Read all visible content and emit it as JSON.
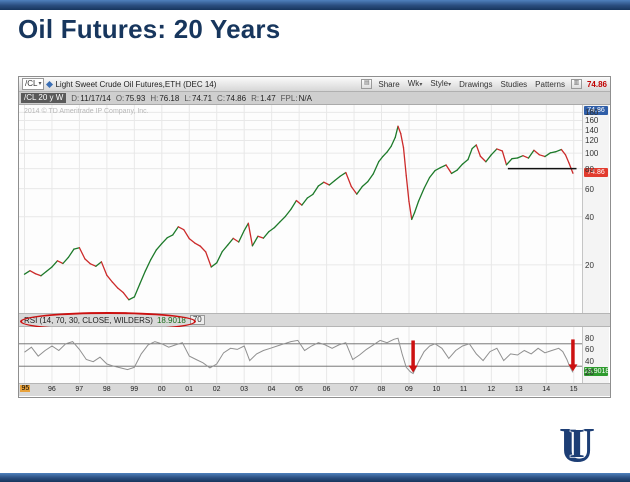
{
  "slide": {
    "title": "Oil Futures: 20 Years"
  },
  "colors": {
    "navy": "#17365d",
    "up": "#1d7a2a",
    "down": "#cc2b2b",
    "annotation_red": "#cc1111",
    "grid": "#e8e8e8",
    "rsi_line": "#909090"
  },
  "platform": {
    "symbol": "/CL",
    "instrument_title": "Light Sweet Crude Oil Futures,ETH (DEC 14)",
    "toolbar_buttons": [
      "Share",
      "Wk",
      "Style",
      "Drawings",
      "Studies",
      "Patterns"
    ],
    "toolbar_last_price": "74.86",
    "range_chip": "/CL 20 y W",
    "status_fields": [
      {
        "label": "D:",
        "value": "11/17/14"
      },
      {
        "label": "O:",
        "value": "75.93"
      },
      {
        "label": "H:",
        "value": "76.18"
      },
      {
        "label": "L:",
        "value": "74.71"
      },
      {
        "label": "C:",
        "value": "74.86"
      },
      {
        "label": "R:",
        "value": "1.47"
      },
      {
        "label": "FPL:",
        "value": "N/A"
      }
    ],
    "watermark": "2014 © TD Ameritrade IP Company, Inc.",
    "top_axis_badge": "74.86",
    "price_axis_badge": "74.86",
    "rsi": {
      "label": "RSI (14, 70, 30, CLOSE, WILDERS)",
      "value": "18.9018",
      "param_badge": "70",
      "current_badge": "18.9018"
    }
  },
  "chart_data": [
    {
      "type": "line",
      "title": "/CL Light Sweet Crude Oil Futures - 20 year weekly (candles up=green, down=red), log price scale",
      "yscale": "log",
      "xlim": [
        1994.8,
        2015.3
      ],
      "ylim": [
        10,
        200
      ],
      "yticks": [
        20,
        40,
        60,
        80,
        100,
        120,
        140,
        160,
        180
      ],
      "xtick_years": [
        1995,
        1996,
        1997,
        1998,
        1999,
        2000,
        2001,
        2002,
        2003,
        2004,
        2005,
        2006,
        2007,
        2008,
        2009,
        2010,
        2011,
        2012,
        2013,
        2014,
        2015
      ],
      "xtick_labels": [
        "95",
        "96",
        "97",
        "98",
        "99",
        "00",
        "01",
        "02",
        "03",
        "04",
        "05",
        "06",
        "07",
        "08",
        "09",
        "10",
        "11",
        "12",
        "13",
        "14",
        "15"
      ],
      "last": 74.86,
      "support_line": {
        "y": 80,
        "x1": 2012.6,
        "x2": 2015.1
      },
      "points": [
        [
          1995.0,
          17.5
        ],
        [
          1995.2,
          18.4
        ],
        [
          1995.4,
          17.6
        ],
        [
          1995.6,
          17.1
        ],
        [
          1995.8,
          18.2
        ],
        [
          1996.0,
          19.4
        ],
        [
          1996.2,
          21.2
        ],
        [
          1996.4,
          20.4
        ],
        [
          1996.6,
          22.3
        ],
        [
          1996.8,
          25.1
        ],
        [
          1997.0,
          25.6
        ],
        [
          1997.2,
          21.8
        ],
        [
          1997.4,
          20.3
        ],
        [
          1997.6,
          19.6
        ],
        [
          1997.8,
          20.9
        ],
        [
          1998.0,
          17.2
        ],
        [
          1998.2,
          15.6
        ],
        [
          1998.4,
          14.3
        ],
        [
          1998.6,
          13.4
        ],
        [
          1998.8,
          12.1
        ],
        [
          1999.0,
          12.6
        ],
        [
          1999.2,
          15.2
        ],
        [
          1999.4,
          18.3
        ],
        [
          1999.6,
          21.6
        ],
        [
          1999.8,
          24.8
        ],
        [
          2000.0,
          27.2
        ],
        [
          2000.2,
          29.6
        ],
        [
          2000.4,
          30.8
        ],
        [
          2000.6,
          34.6
        ],
        [
          2000.8,
          33.2
        ],
        [
          2001.0,
          29.2
        ],
        [
          2001.2,
          27.4
        ],
        [
          2001.4,
          26.2
        ],
        [
          2001.6,
          24.1
        ],
        [
          2001.8,
          19.4
        ],
        [
          2002.0,
          20.6
        ],
        [
          2002.2,
          24.2
        ],
        [
          2002.4,
          26.6
        ],
        [
          2002.6,
          29.3
        ],
        [
          2002.8,
          27.8
        ],
        [
          2003.0,
          32.8
        ],
        [
          2003.15,
          36.4
        ],
        [
          2003.3,
          26.3
        ],
        [
          2003.5,
          30.2
        ],
        [
          2003.7,
          29.4
        ],
        [
          2003.9,
          32.3
        ],
        [
          2004.1,
          34.2
        ],
        [
          2004.3,
          37.1
        ],
        [
          2004.5,
          40.2
        ],
        [
          2004.7,
          44.5
        ],
        [
          2004.9,
          50.5
        ],
        [
          2005.1,
          47.3
        ],
        [
          2005.3,
          52.4
        ],
        [
          2005.5,
          55.2
        ],
        [
          2005.7,
          62.3
        ],
        [
          2005.9,
          65.8
        ],
        [
          2006.1,
          63.2
        ],
        [
          2006.3,
          67.4
        ],
        [
          2006.5,
          71.8
        ],
        [
          2006.7,
          75.6
        ],
        [
          2006.9,
          61.8
        ],
        [
          2007.1,
          55.4
        ],
        [
          2007.3,
          61.8
        ],
        [
          2007.5,
          66.3
        ],
        [
          2007.7,
          74.2
        ],
        [
          2007.9,
          88.5
        ],
        [
          2008.05,
          95.4
        ],
        [
          2008.2,
          101.5
        ],
        [
          2008.35,
          110.2
        ],
        [
          2008.5,
          125.4
        ],
        [
          2008.6,
          147.2
        ],
        [
          2008.7,
          132.5
        ],
        [
          2008.8,
          108.3
        ],
        [
          2008.9,
          72.4
        ],
        [
          2009.0,
          49.8
        ],
        [
          2009.1,
          38.5
        ],
        [
          2009.2,
          42.3
        ],
        [
          2009.35,
          50.1
        ],
        [
          2009.55,
          60.2
        ],
        [
          2009.75,
          70.4
        ],
        [
          2009.95,
          77.8
        ],
        [
          2010.15,
          81.2
        ],
        [
          2010.35,
          84.3
        ],
        [
          2010.55,
          74.6
        ],
        [
          2010.75,
          78.2
        ],
        [
          2010.95,
          85.4
        ],
        [
          2011.15,
          91.2
        ],
        [
          2011.3,
          106.8
        ],
        [
          2011.45,
          112.5
        ],
        [
          2011.6,
          95.6
        ],
        [
          2011.8,
          88.3
        ],
        [
          2012.0,
          97.8
        ],
        [
          2012.2,
          106.2
        ],
        [
          2012.4,
          103.1
        ],
        [
          2012.55,
          84.5
        ],
        [
          2012.75,
          92.3
        ],
        [
          2012.95,
          93.2
        ],
        [
          2013.15,
          96.4
        ],
        [
          2013.35,
          93.1
        ],
        [
          2013.55,
          104.2
        ],
        [
          2013.75,
          97.6
        ],
        [
          2013.95,
          95.2
        ],
        [
          2014.15,
          100.4
        ],
        [
          2014.35,
          102.1
        ],
        [
          2014.55,
          105.3
        ],
        [
          2014.7,
          97.5
        ],
        [
          2014.82,
          87.2
        ],
        [
          2014.9,
          80.4
        ],
        [
          2014.97,
          74.86
        ]
      ]
    },
    {
      "type": "line",
      "title": "RSI (14, 70, 30, CLOSE, WILDERS)",
      "ylim": [
        0,
        100
      ],
      "yticks": [
        20,
        40,
        60,
        80
      ],
      "ref_lines": [
        30,
        70
      ],
      "last": 18.9018,
      "arrows_x": [
        2009.15,
        2014.97
      ],
      "points": [
        [
          1995.0,
          55
        ],
        [
          1995.25,
          64
        ],
        [
          1995.5,
          48
        ],
        [
          1995.75,
          58
        ],
        [
          1996.0,
          66
        ],
        [
          1996.25,
          58
        ],
        [
          1996.5,
          70
        ],
        [
          1996.75,
          74
        ],
        [
          1997.0,
          60
        ],
        [
          1997.25,
          42
        ],
        [
          1997.5,
          38
        ],
        [
          1997.75,
          46
        ],
        [
          1998.0,
          34
        ],
        [
          1998.25,
          30
        ],
        [
          1998.5,
          27
        ],
        [
          1998.75,
          24
        ],
        [
          1999.0,
          28
        ],
        [
          1999.25,
          52
        ],
        [
          1999.5,
          68
        ],
        [
          1999.75,
          74
        ],
        [
          2000.0,
          70
        ],
        [
          2000.25,
          64
        ],
        [
          2000.5,
          68
        ],
        [
          2000.75,
          72
        ],
        [
          2001.0,
          48
        ],
        [
          2001.25,
          42
        ],
        [
          2001.5,
          36
        ],
        [
          2001.75,
          27
        ],
        [
          2002.0,
          34
        ],
        [
          2002.25,
          54
        ],
        [
          2002.5,
          62
        ],
        [
          2002.75,
          60
        ],
        [
          2003.0,
          66
        ],
        [
          2003.2,
          40
        ],
        [
          2003.45,
          52
        ],
        [
          2003.7,
          58
        ],
        [
          2003.95,
          62
        ],
        [
          2004.2,
          66
        ],
        [
          2004.45,
          70
        ],
        [
          2004.7,
          74
        ],
        [
          2004.95,
          76
        ],
        [
          2005.2,
          58
        ],
        [
          2005.45,
          66
        ],
        [
          2005.7,
          72
        ],
        [
          2005.95,
          68
        ],
        [
          2006.2,
          62
        ],
        [
          2006.45,
          68
        ],
        [
          2006.7,
          72
        ],
        [
          2006.95,
          42
        ],
        [
          2007.2,
          50
        ],
        [
          2007.45,
          60
        ],
        [
          2007.7,
          68
        ],
        [
          2007.95,
          76
        ],
        [
          2008.2,
          72
        ],
        [
          2008.45,
          78
        ],
        [
          2008.6,
          80
        ],
        [
          2008.75,
          52
        ],
        [
          2008.9,
          28
        ],
        [
          2009.05,
          20
        ],
        [
          2009.15,
          17
        ],
        [
          2009.35,
          38
        ],
        [
          2009.55,
          56
        ],
        [
          2009.75,
          66
        ],
        [
          2009.95,
          70
        ],
        [
          2010.2,
          62
        ],
        [
          2010.45,
          44
        ],
        [
          2010.7,
          58
        ],
        [
          2010.95,
          66
        ],
        [
          2011.2,
          70
        ],
        [
          2011.45,
          52
        ],
        [
          2011.7,
          40
        ],
        [
          2011.95,
          56
        ],
        [
          2012.2,
          62
        ],
        [
          2012.45,
          40
        ],
        [
          2012.7,
          52
        ],
        [
          2012.95,
          50
        ],
        [
          2013.2,
          58
        ],
        [
          2013.45,
          52
        ],
        [
          2013.7,
          62
        ],
        [
          2013.95,
          54
        ],
        [
          2014.2,
          58
        ],
        [
          2014.45,
          62
        ],
        [
          2014.6,
          56
        ],
        [
          2014.75,
          42
        ],
        [
          2014.85,
          30
        ],
        [
          2014.97,
          18.9
        ]
      ]
    }
  ],
  "logo": {
    "letters": "IU"
  }
}
